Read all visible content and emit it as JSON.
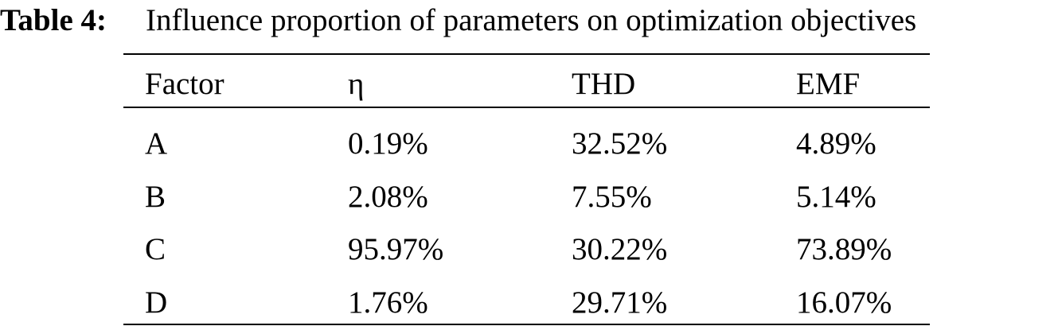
{
  "caption": {
    "label": "Table 4:",
    "text": "Influence proportion of parameters on optimization objectives"
  },
  "table": {
    "header": [
      "Factor",
      "η",
      "THD",
      "EMF"
    ],
    "rows": [
      [
        "A",
        "0.19%",
        "32.52%",
        "4.89%"
      ],
      [
        "B",
        "2.08%",
        "7.55%",
        "5.14%"
      ],
      [
        "C",
        "95.97%",
        "30.22%",
        "73.89%"
      ],
      [
        "D",
        "1.76%",
        "29.71%",
        "16.07%"
      ]
    ]
  }
}
